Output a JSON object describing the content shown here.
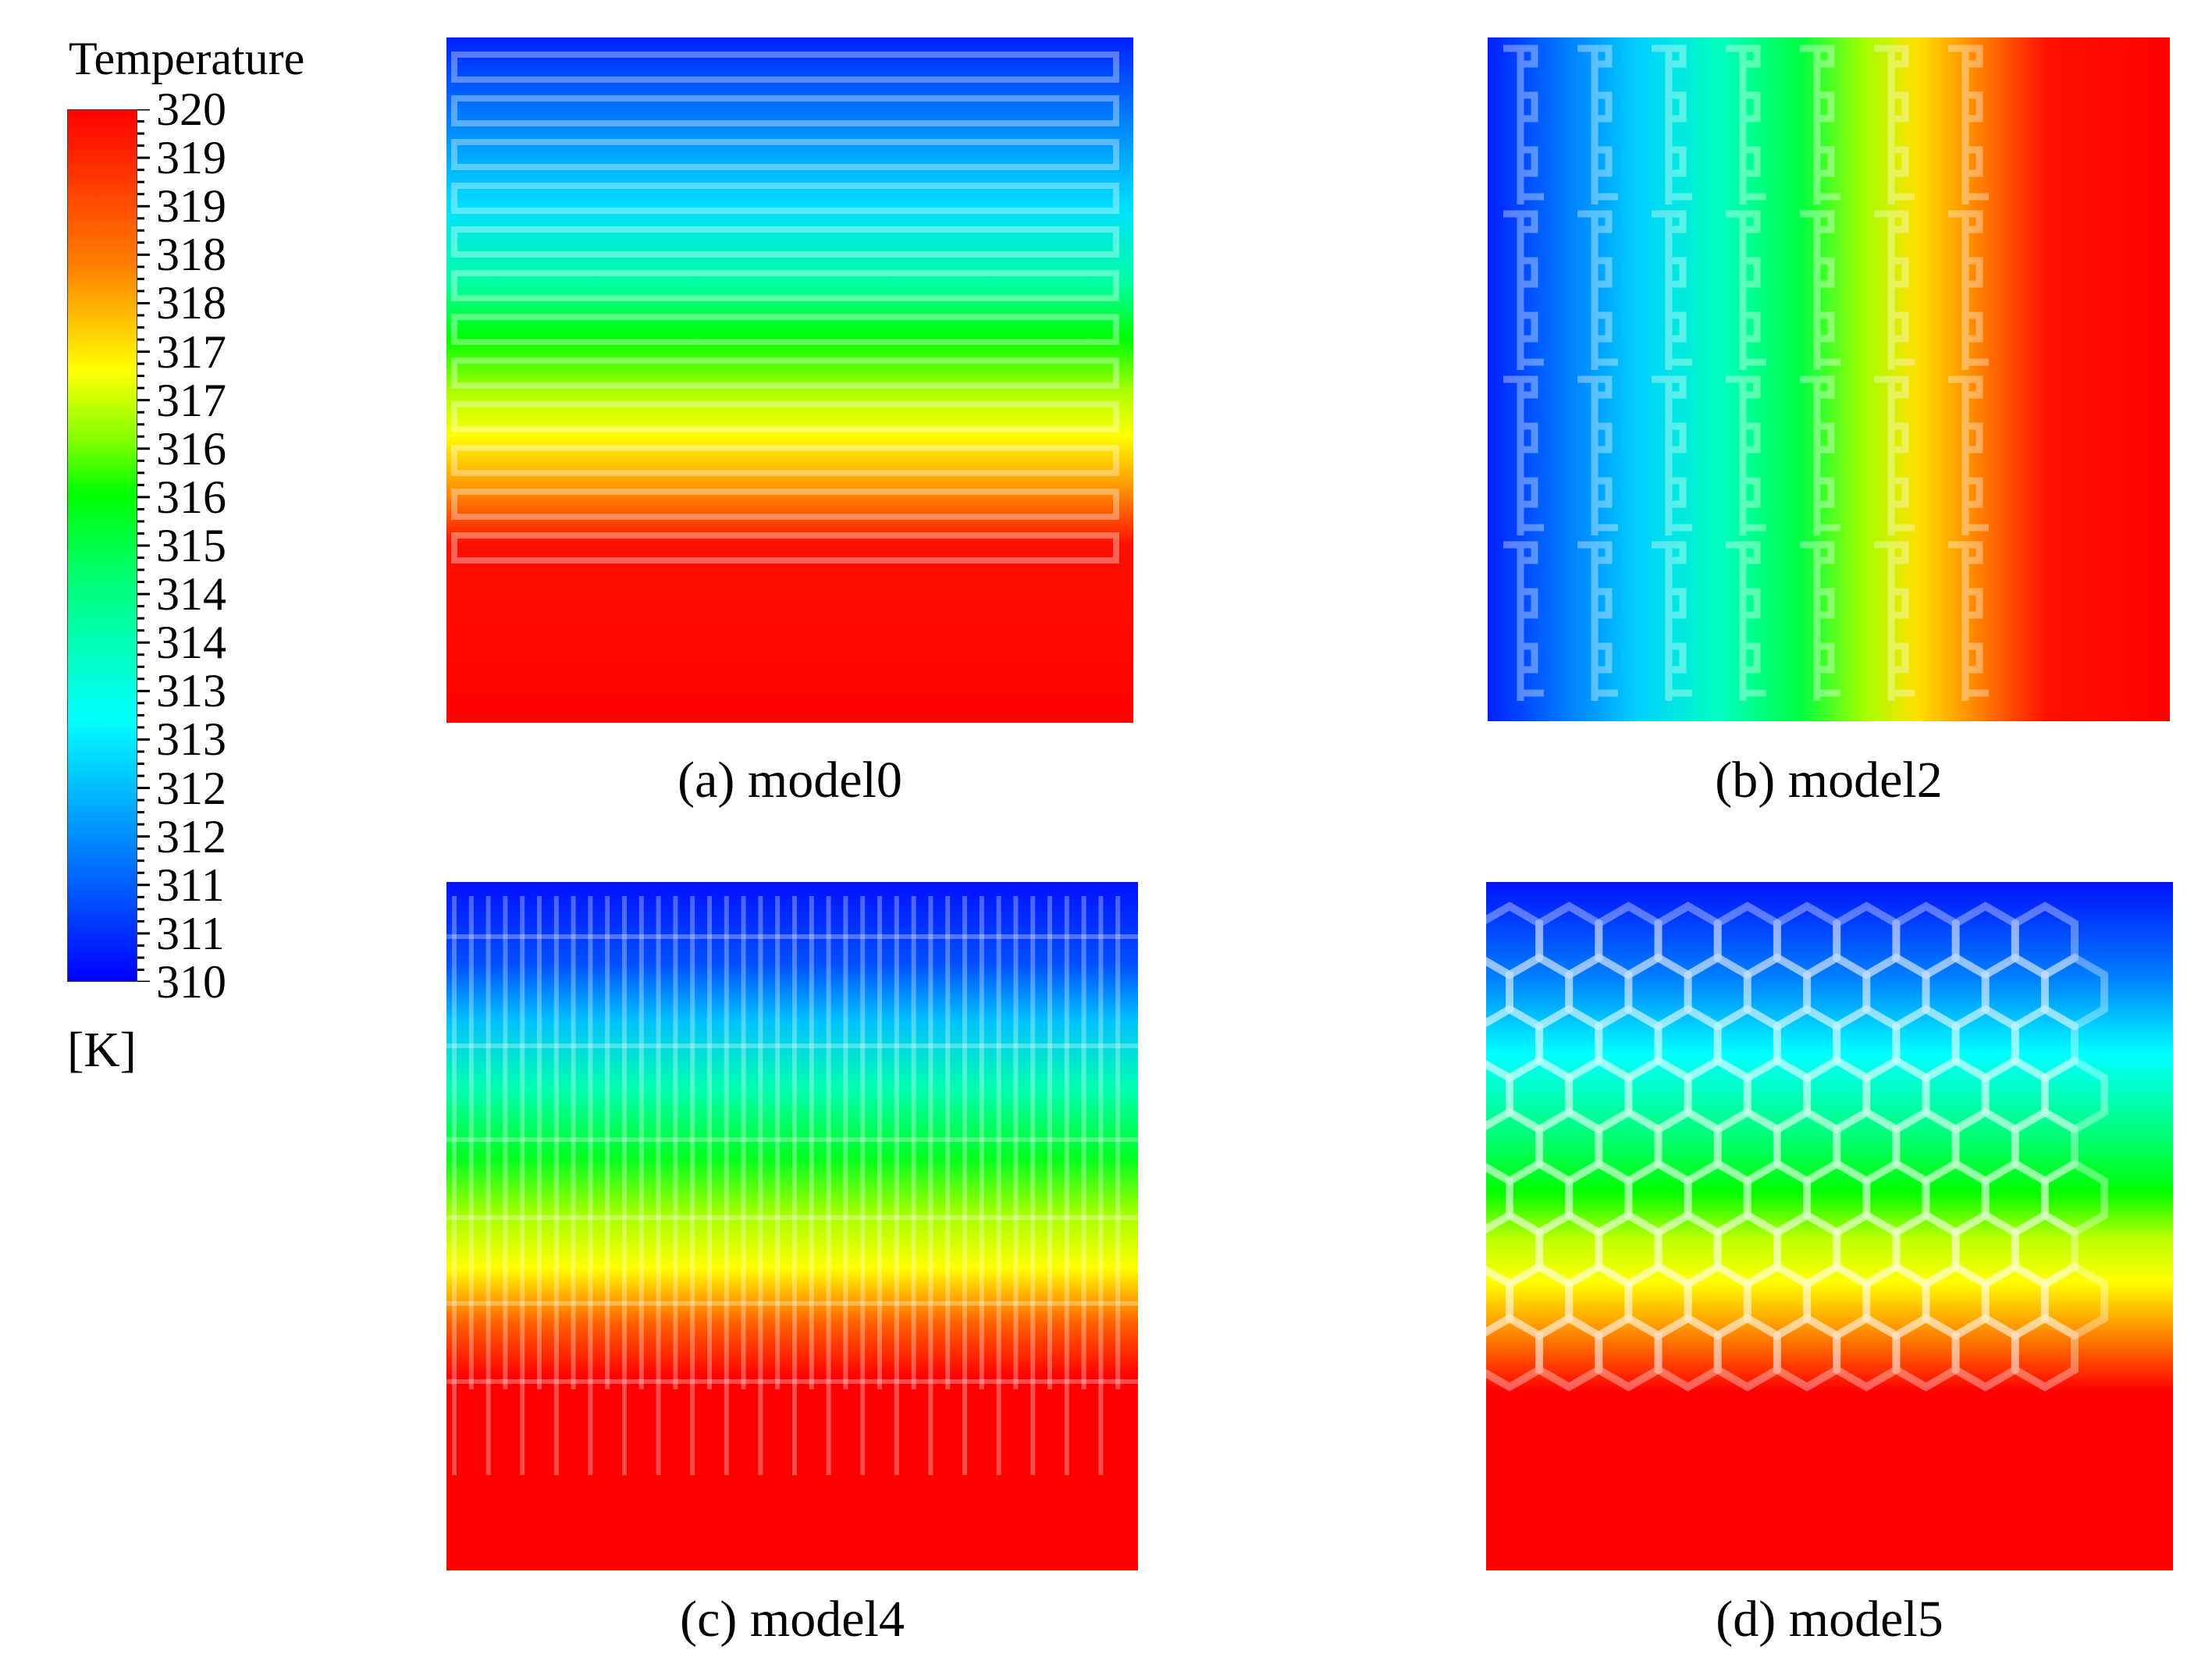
{
  "legend": {
    "title": "Temperature",
    "unit": "[K]",
    "ticks": [
      "320",
      "319",
      "319",
      "318",
      "318",
      "317",
      "317",
      "316",
      "316",
      "315",
      "314",
      "314",
      "313",
      "313",
      "312",
      "312",
      "311",
      "311",
      "310"
    ],
    "range": [
      310,
      320
    ],
    "colormap": [
      "#0000ff",
      "#0080ff",
      "#00ffff",
      "#00ff80",
      "#00ff00",
      "#80ff00",
      "#ffff00",
      "#ff8000",
      "#ff0000"
    ]
  },
  "panels": [
    {
      "id": "a",
      "caption": "(a) model0",
      "pattern": "horizontal-serpentine",
      "gradient": "top-to-bottom"
    },
    {
      "id": "b",
      "caption": "(b) model2",
      "pattern": "comb-channels",
      "gradient": "left-to-right"
    },
    {
      "id": "c",
      "caption": "(c) model4",
      "pattern": "vertical-fins",
      "gradient": "top-to-bottom"
    },
    {
      "id": "d",
      "caption": "(d) model5",
      "pattern": "honeycomb",
      "gradient": "top-to-bottom"
    }
  ]
}
